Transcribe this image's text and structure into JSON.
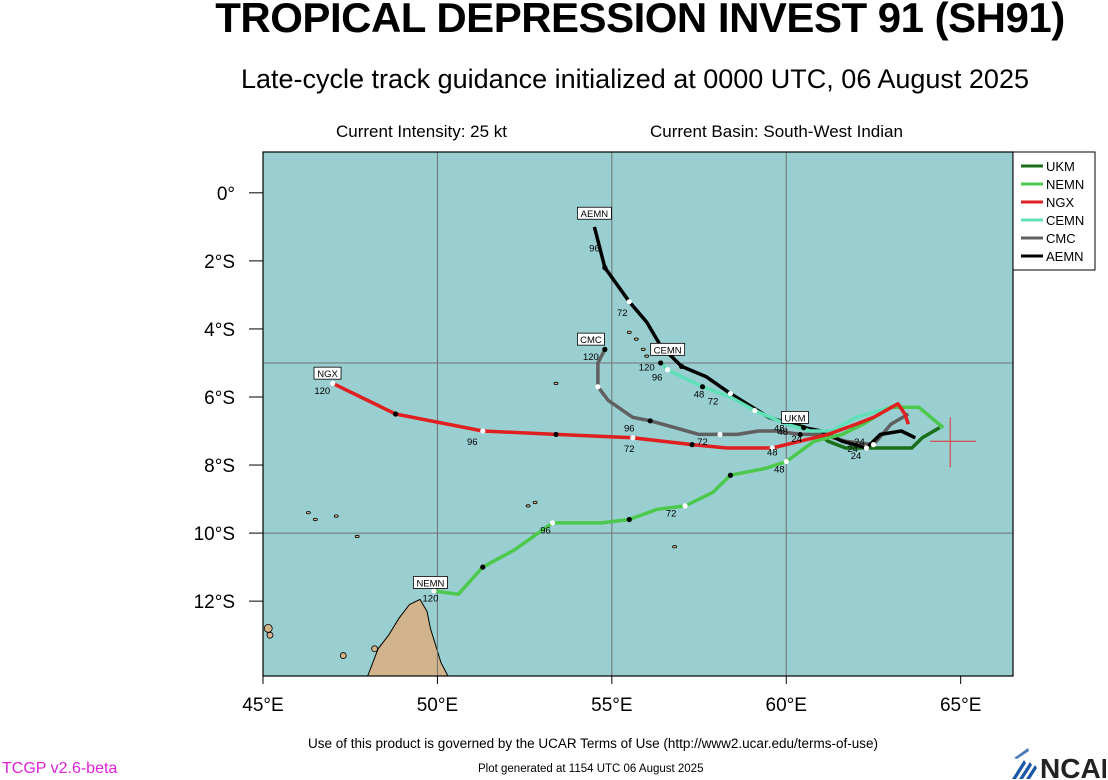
{
  "header": {
    "title": "TROPICAL DEPRESSION INVEST 91 (SH91)",
    "subtitle": "Late-cycle track guidance initialized at 0000 UTC, 06 August 2025",
    "intensity": "Current Intensity: 25 kt",
    "basin": "Current Basin: South-West Indian"
  },
  "footer": {
    "terms": "Use of this product is governed by the UCAR Terms of Use (http://www2.ucar.edu/terms-of-use)",
    "generated": "Plot generated at 1154 UTC   06 August 2025",
    "version": "TCGP v2.6-beta",
    "logo_text": "NCAR"
  },
  "map": {
    "lon_range": [
      45,
      66.5
    ],
    "lat_range": [
      -14.2,
      1.2
    ],
    "lon_ticks": [
      45,
      50,
      55,
      60,
      65
    ],
    "lon_tick_labels": [
      "45°E",
      "50°E",
      "55°E",
      "60°E",
      "65°E"
    ],
    "lat_ticks": [
      0,
      -2,
      -4,
      -6,
      -8,
      -10,
      -12
    ],
    "lat_tick_labels": [
      "0°",
      "2°S",
      "4°S",
      "6°S",
      "8°S",
      "10°S",
      "12°S"
    ],
    "grid_lons": [
      50,
      55,
      60
    ],
    "grid_lats": [
      -5,
      -10
    ],
    "ocean_color": "#99cfd0",
    "land_color": "#d2b48c",
    "current_position": {
      "lon": 64.7,
      "lat": -7.3,
      "marker_color": "#e03030"
    }
  },
  "chart_data": {
    "type": "track",
    "legend_position": "top-right",
    "series": [
      {
        "name": "UKM",
        "color": "#1a6e1a",
        "label": "UKM",
        "points": [
          [
            64.4,
            -6.9
          ],
          [
            63.9,
            -7.2
          ],
          [
            63.6,
            -7.5
          ],
          [
            62.5,
            -7.5
          ],
          [
            61.7,
            -7.5
          ],
          [
            61.2,
            -7.3
          ],
          [
            60.8,
            -7.0
          ],
          [
            60.3,
            -6.8
          ]
        ],
        "markers": [],
        "hour_labels": []
      },
      {
        "name": "NEMN",
        "color": "#4cc94c",
        "label": "NEMN",
        "points": [
          [
            64.5,
            -6.9
          ],
          [
            63.8,
            -6.3
          ],
          [
            63.0,
            -6.3
          ],
          [
            62.2,
            -6.8
          ],
          [
            61.6,
            -7.1
          ],
          [
            60.8,
            -7.3
          ],
          [
            60.0,
            -7.9
          ],
          [
            59.4,
            -8.1
          ],
          [
            58.4,
            -8.3
          ],
          [
            57.9,
            -8.8
          ],
          [
            57.1,
            -9.2
          ],
          [
            56.3,
            -9.3
          ],
          [
            55.5,
            -9.6
          ],
          [
            54.7,
            -9.7
          ],
          [
            53.3,
            -9.7
          ],
          [
            52.2,
            -10.5
          ],
          [
            51.3,
            -11.0
          ],
          [
            50.6,
            -11.8
          ],
          [
            49.9,
            -11.7
          ]
        ],
        "markers": [
          [
            60.0,
            -7.9
          ],
          [
            58.4,
            -8.3
          ],
          [
            57.1,
            -9.2
          ],
          [
            55.5,
            -9.6
          ],
          [
            53.3,
            -9.7
          ],
          [
            51.3,
            -11.0
          ],
          [
            49.9,
            -11.7
          ]
        ],
        "hour_labels": [
          {
            "text": "24",
            "lon": 61.9,
            "lat": -7.5
          },
          {
            "text": "48",
            "lon": 59.8,
            "lat": -8.1
          },
          {
            "text": "72",
            "lon": 56.7,
            "lat": -9.4
          },
          {
            "text": "96",
            "lon": 53.1,
            "lat": -9.9
          },
          {
            "text": "120",
            "lon": 49.8,
            "lat": -11.9
          }
        ]
      },
      {
        "name": "NGX",
        "color": "#e02020",
        "label": "NGX",
        "points": [
          [
            63.5,
            -6.8
          ],
          [
            63.4,
            -6.5
          ],
          [
            63.2,
            -6.2
          ],
          [
            62.5,
            -6.6
          ],
          [
            62.0,
            -6.8
          ],
          [
            61.2,
            -7.1
          ],
          [
            60.4,
            -7.3
          ],
          [
            59.6,
            -7.5
          ],
          [
            58.3,
            -7.5
          ],
          [
            57.3,
            -7.4
          ],
          [
            55.6,
            -7.2
          ],
          [
            53.4,
            -7.1
          ],
          [
            51.3,
            -7.0
          ],
          [
            48.8,
            -6.5
          ],
          [
            47.0,
            -5.6
          ]
        ],
        "markers": [
          [
            59.6,
            -7.5
          ],
          [
            57.3,
            -7.4
          ],
          [
            55.6,
            -7.2
          ],
          [
            53.4,
            -7.1
          ],
          [
            51.3,
            -7.0
          ],
          [
            48.8,
            -6.5
          ],
          [
            47.0,
            -5.6
          ]
        ],
        "hour_labels": [
          {
            "text": "24",
            "lon": 60.3,
            "lat": -7.2
          },
          {
            "text": "48",
            "lon": 59.6,
            "lat": -7.6
          },
          {
            "text": "72",
            "lon": 55.5,
            "lat": -7.5
          },
          {
            "text": "96",
            "lon": 51.0,
            "lat": -7.3
          },
          {
            "text": "120",
            "lon": 46.7,
            "lat": -5.8
          }
        ]
      },
      {
        "name": "CEMN",
        "color": "#60e0b8",
        "label": "CEMN",
        "points": [
          [
            63.0,
            -6.3
          ],
          [
            62.0,
            -6.6
          ],
          [
            61.3,
            -7.0
          ],
          [
            60.7,
            -7.0
          ],
          [
            60.0,
            -6.8
          ],
          [
            59.1,
            -6.4
          ],
          [
            58.4,
            -6.0
          ],
          [
            57.6,
            -5.7
          ],
          [
            57.0,
            -5.4
          ],
          [
            56.6,
            -5.2
          ],
          [
            56.4,
            -5.0
          ]
        ],
        "markers": [
          [
            59.1,
            -6.4
          ],
          [
            57.6,
            -5.7
          ],
          [
            56.6,
            -5.2
          ],
          [
            56.4,
            -5.0
          ]
        ],
        "hour_labels": [
          {
            "text": "48",
            "lon": 57.5,
            "lat": -5.9
          },
          {
            "text": "96",
            "lon": 56.3,
            "lat": -5.4
          },
          {
            "text": "120",
            "lon": 56.0,
            "lat": -5.1
          }
        ]
      },
      {
        "name": "CMC",
        "color": "#606060",
        "label": "CMC",
        "points": [
          [
            63.5,
            -6.5
          ],
          [
            63.0,
            -6.8
          ],
          [
            62.5,
            -7.4
          ],
          [
            61.7,
            -7.3
          ],
          [
            61.0,
            -7.1
          ],
          [
            60.4,
            -7.1
          ],
          [
            59.7,
            -7.0
          ],
          [
            59.2,
            -7.0
          ],
          [
            58.6,
            -7.1
          ],
          [
            58.1,
            -7.1
          ],
          [
            57.5,
            -7.1
          ],
          [
            56.8,
            -6.9
          ],
          [
            56.1,
            -6.7
          ],
          [
            55.6,
            -6.6
          ],
          [
            54.9,
            -6.1
          ],
          [
            54.6,
            -5.7
          ],
          [
            54.6,
            -5.0
          ],
          [
            54.8,
            -4.6
          ]
        ],
        "markers": [
          [
            62.5,
            -7.4
          ],
          [
            60.4,
            -7.1
          ],
          [
            58.1,
            -7.1
          ],
          [
            56.1,
            -6.7
          ],
          [
            54.6,
            -5.7
          ],
          [
            54.8,
            -4.6
          ]
        ],
        "hour_labels": [
          {
            "text": "24",
            "lon": 62.1,
            "lat": -7.3
          },
          {
            "text": "48",
            "lon": 59.9,
            "lat": -7.0
          },
          {
            "text": "72",
            "lon": 57.6,
            "lat": -7.3
          },
          {
            "text": "96",
            "lon": 55.5,
            "lat": -6.9
          },
          {
            "text": "120",
            "lon": 54.4,
            "lat": -4.8
          }
        ]
      },
      {
        "name": "AEMN",
        "color": "#000000",
        "label": "AEMN",
        "points": [
          [
            63.7,
            -7.2
          ],
          [
            63.3,
            -7.0
          ],
          [
            62.7,
            -7.1
          ],
          [
            62.3,
            -7.5
          ],
          [
            61.6,
            -7.3
          ],
          [
            61.0,
            -7.0
          ],
          [
            60.5,
            -6.9
          ],
          [
            59.5,
            -6.6
          ],
          [
            58.4,
            -5.9
          ],
          [
            57.7,
            -5.4
          ],
          [
            57.0,
            -5.1
          ],
          [
            56.4,
            -4.5
          ],
          [
            56.0,
            -3.8
          ],
          [
            55.5,
            -3.2
          ],
          [
            54.8,
            -2.2
          ],
          [
            54.5,
            -1.0
          ]
        ],
        "markers": [
          [
            62.3,
            -7.5
          ],
          [
            60.5,
            -6.9
          ],
          [
            58.4,
            -5.9
          ],
          [
            57.0,
            -5.1
          ],
          [
            55.5,
            -3.2
          ],
          [
            54.8,
            -2.2
          ]
        ],
        "hour_labels": [
          {
            "text": "24",
            "lon": 62.0,
            "lat": -7.7
          },
          {
            "text": "48",
            "lon": 59.8,
            "lat": -6.9
          },
          {
            "text": "72",
            "lon": 57.9,
            "lat": -6.1
          },
          {
            "text": "72",
            "lon": 55.3,
            "lat": -3.5
          },
          {
            "text": "96",
            "lon": 54.5,
            "lat": -1.6
          }
        ]
      }
    ]
  }
}
